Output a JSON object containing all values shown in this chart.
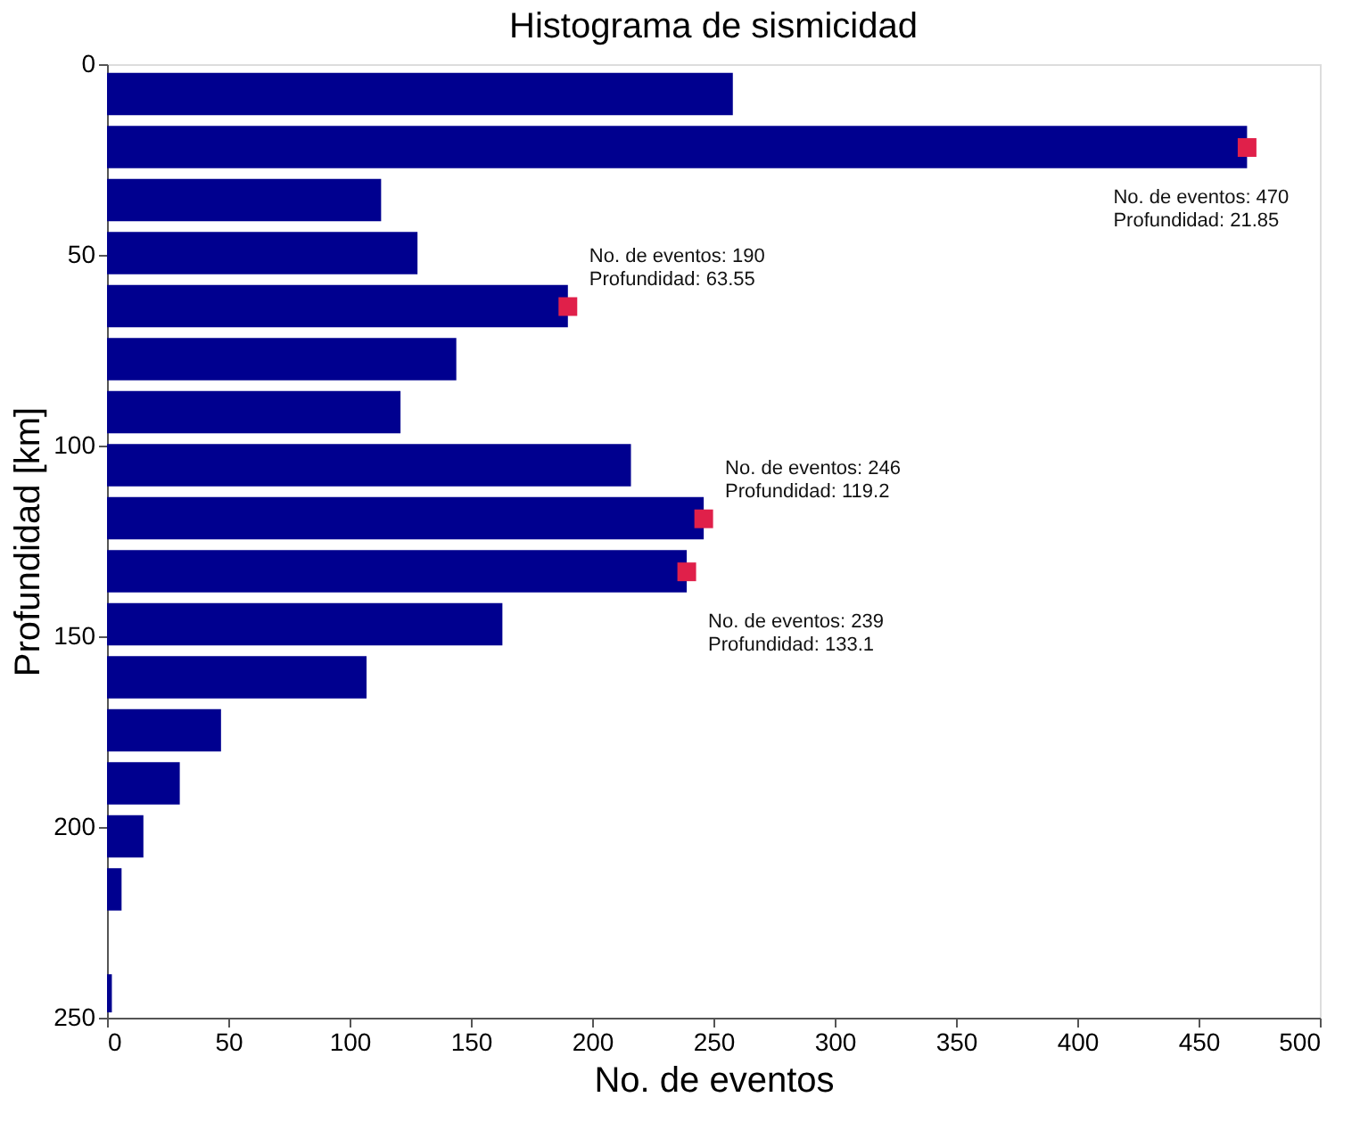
{
  "chart_data": {
    "type": "histogram",
    "orientation": "horizontal",
    "title": "Histograma de sismicidad",
    "xlabel": "No. de eventos",
    "ylabel": "Profundidad [km]",
    "color": "#00008f",
    "bins": [
      0.9,
      14.8,
      28.7,
      42.6,
      56.5,
      70.4,
      84.3,
      98.2,
      112.1,
      126.0,
      139.9,
      153.8,
      167.7,
      181.6,
      195.5,
      209.4,
      223.3,
      237.2,
      250
    ],
    "values": [
      258,
      470,
      113,
      128,
      190,
      144,
      121,
      216,
      246,
      239,
      163,
      107,
      47,
      30,
      15,
      6,
      0,
      2
    ],
    "xlim": [
      0,
      500
    ],
    "xticks": [
      0,
      50,
      100,
      150,
      200,
      250,
      300,
      350,
      400,
      450,
      500
    ],
    "ylim": [
      250,
      0
    ],
    "yticks": [
      0,
      50,
      100,
      150,
      200,
      250
    ],
    "grid": false,
    "annotations": [
      {
        "text": "No. de eventos: 470\nProfundidad: 21.85",
        "x": 470,
        "y": 21.85
      },
      {
        "text": "No. de eventos: 190\nProfundidad: 63.55",
        "x": 190,
        "y": 63.55
      },
      {
        "text": "No. de eventos: 246\nProfundidad: 119.2",
        "x": 246,
        "y": 119.2
      },
      {
        "text": "No. de eventos: 239\nProfundidad: 133.1",
        "x": 239,
        "y": 133.1
      }
    ]
  }
}
